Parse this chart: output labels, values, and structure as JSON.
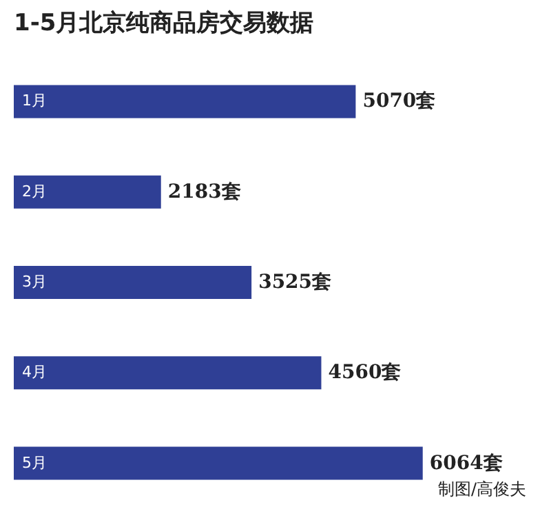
{
  "chart_data": {
    "type": "bar",
    "orientation": "horizontal",
    "title": "1-5月北京纯商品房交易数据",
    "categories": [
      "1月",
      "2月",
      "3月",
      "4月",
      "5月"
    ],
    "values": [
      5070,
      2183,
      3525,
      4560,
      6064
    ],
    "value_labels": [
      "5070套",
      "2183套",
      "3525套",
      "4560套",
      "6064套"
    ],
    "color": "#2f3f95",
    "annotations": [
      "制图/高俊夫"
    ]
  }
}
